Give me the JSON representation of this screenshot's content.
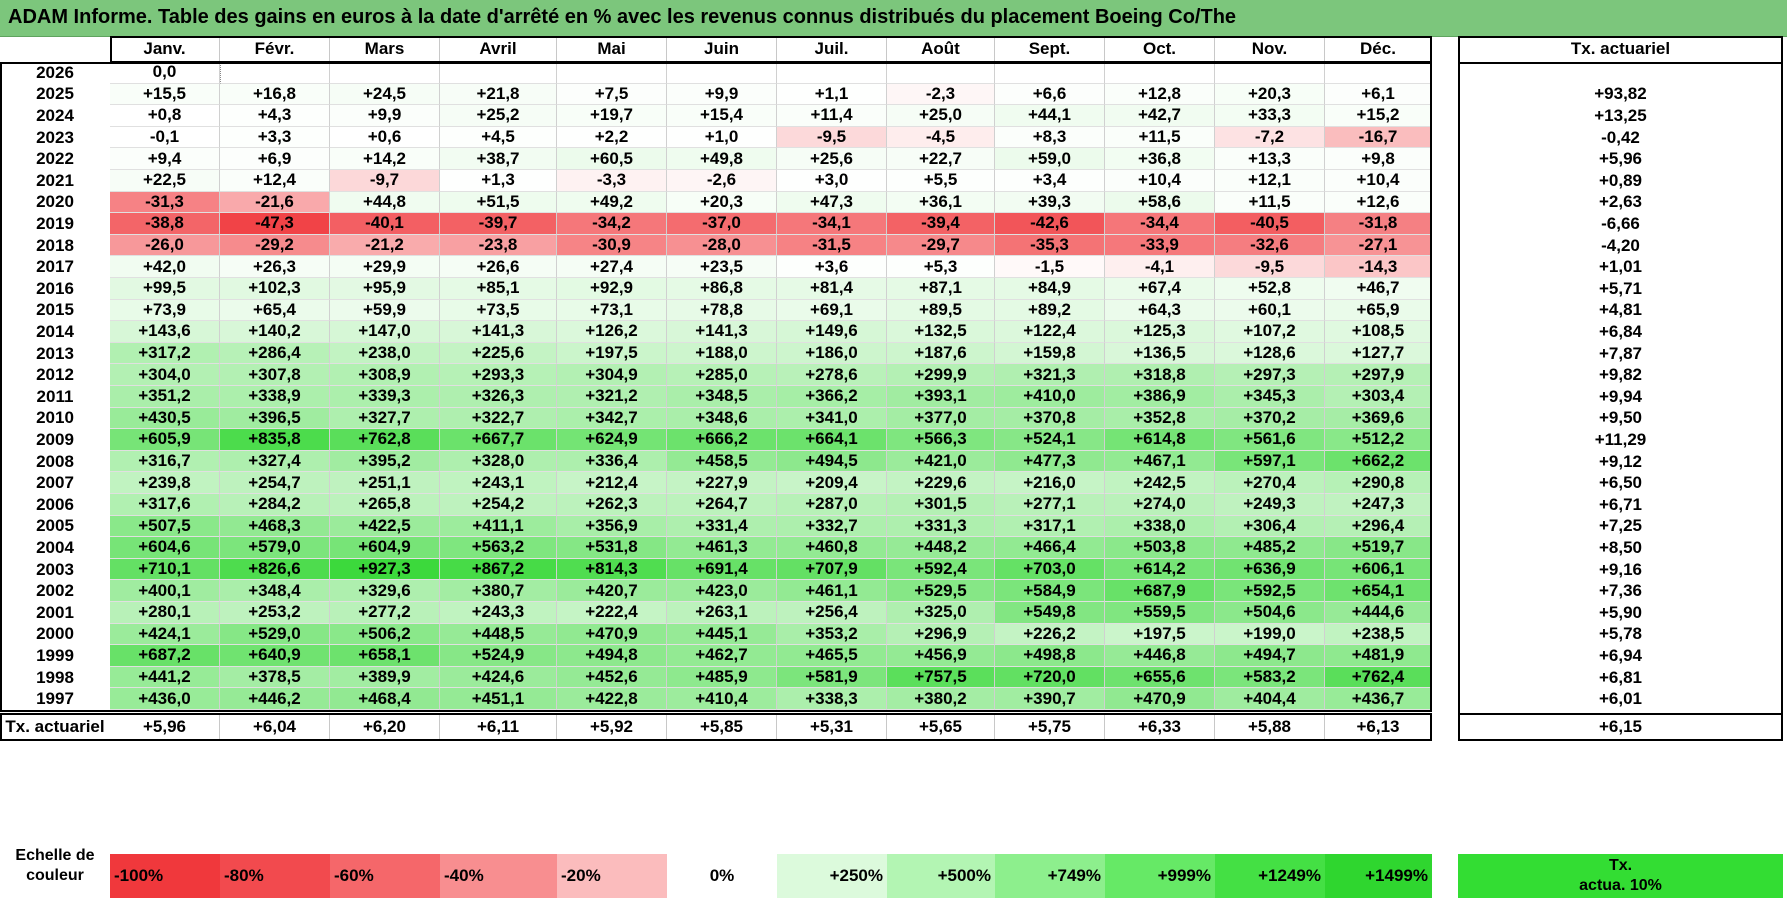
{
  "title": "ADAM Informe. Table des gains en euros à la date d'arrêté en % avec les revenus connus distribués du placement Boeing Co/The",
  "months": [
    "Janv.",
    "Févr.",
    "Mars",
    "Avril",
    "Mai",
    "Juin",
    "Juil.",
    "Août",
    "Sept.",
    "Oct.",
    "Nov.",
    "Déc."
  ],
  "rate_header": "Tx. actuariel",
  "rows": [
    {
      "year": "2026",
      "values": [
        "0,0",
        "",
        "",
        "",
        "",
        "",
        "",
        "",
        "",
        "",
        "",
        ""
      ],
      "rate": ""
    },
    {
      "year": "2025",
      "values": [
        "+15,5",
        "+16,8",
        "+24,5",
        "+21,8",
        "+7,5",
        "+9,9",
        "+1,1",
        "-2,3",
        "+6,6",
        "+12,8",
        "+20,3",
        "+6,1"
      ],
      "rate": "+93,82"
    },
    {
      "year": "2024",
      "values": [
        "+0,8",
        "+4,3",
        "+9,9",
        "+25,2",
        "+19,7",
        "+15,4",
        "+11,4",
        "+25,0",
        "+44,1",
        "+42,7",
        "+33,3",
        "+15,2"
      ],
      "rate": "+13,25"
    },
    {
      "year": "2023",
      "values": [
        "-0,1",
        "+3,3",
        "+0,6",
        "+4,5",
        "+2,2",
        "+1,0",
        "-9,5",
        "-4,5",
        "+8,3",
        "+11,5",
        "-7,2",
        "-16,7"
      ],
      "rate": "-0,42"
    },
    {
      "year": "2022",
      "values": [
        "+9,4",
        "+6,9",
        "+14,2",
        "+38,7",
        "+60,5",
        "+49,8",
        "+25,6",
        "+22,7",
        "+59,0",
        "+36,8",
        "+13,3",
        "+9,8"
      ],
      "rate": "+5,96"
    },
    {
      "year": "2021",
      "values": [
        "+22,5",
        "+12,4",
        "-9,7",
        "+1,3",
        "-3,3",
        "-2,6",
        "+3,0",
        "+5,5",
        "+3,4",
        "+10,4",
        "+12,1",
        "+10,4"
      ],
      "rate": "+0,89"
    },
    {
      "year": "2020",
      "values": [
        "-31,3",
        "-21,6",
        "+44,8",
        "+51,5",
        "+49,2",
        "+20,3",
        "+47,3",
        "+36,1",
        "+39,3",
        "+58,6",
        "+11,5",
        "+12,6"
      ],
      "rate": "+2,63"
    },
    {
      "year": "2019",
      "values": [
        "-38,8",
        "-47,3",
        "-40,1",
        "-39,7",
        "-34,2",
        "-37,0",
        "-34,1",
        "-39,4",
        "-42,6",
        "-34,4",
        "-40,5",
        "-31,8"
      ],
      "rate": "-6,66"
    },
    {
      "year": "2018",
      "values": [
        "-26,0",
        "-29,2",
        "-21,2",
        "-23,8",
        "-30,9",
        "-28,0",
        "-31,5",
        "-29,7",
        "-35,3",
        "-33,9",
        "-32,6",
        "-27,1"
      ],
      "rate": "-4,20"
    },
    {
      "year": "2017",
      "values": [
        "+42,0",
        "+26,3",
        "+29,9",
        "+26,6",
        "+27,4",
        "+23,5",
        "+3,6",
        "+5,3",
        "-1,5",
        "-4,1",
        "-9,5",
        "-14,3"
      ],
      "rate": "+1,01"
    },
    {
      "year": "2016",
      "values": [
        "+99,5",
        "+102,3",
        "+95,9",
        "+85,1",
        "+92,9",
        "+86,8",
        "+81,4",
        "+87,1",
        "+84,9",
        "+67,4",
        "+52,8",
        "+46,7"
      ],
      "rate": "+5,71"
    },
    {
      "year": "2015",
      "values": [
        "+73,9",
        "+65,4",
        "+59,9",
        "+73,5",
        "+73,1",
        "+78,8",
        "+69,1",
        "+89,5",
        "+89,2",
        "+64,3",
        "+60,1",
        "+65,9"
      ],
      "rate": "+4,81"
    },
    {
      "year": "2014",
      "values": [
        "+143,6",
        "+140,2",
        "+147,0",
        "+141,3",
        "+126,2",
        "+141,3",
        "+149,6",
        "+132,5",
        "+122,4",
        "+125,3",
        "+107,2",
        "+108,5"
      ],
      "rate": "+6,84"
    },
    {
      "year": "2013",
      "values": [
        "+317,2",
        "+286,4",
        "+238,0",
        "+225,6",
        "+197,5",
        "+188,0",
        "+186,0",
        "+187,6",
        "+159,8",
        "+136,5",
        "+128,6",
        "+127,7"
      ],
      "rate": "+7,87"
    },
    {
      "year": "2012",
      "values": [
        "+304,0",
        "+307,8",
        "+308,9",
        "+293,3",
        "+304,9",
        "+285,0",
        "+278,6",
        "+299,9",
        "+321,3",
        "+318,8",
        "+297,3",
        "+297,9"
      ],
      "rate": "+9,82"
    },
    {
      "year": "2011",
      "values": [
        "+351,2",
        "+338,9",
        "+339,3",
        "+326,3",
        "+321,2",
        "+348,5",
        "+366,2",
        "+393,1",
        "+410,0",
        "+386,9",
        "+345,3",
        "+303,4"
      ],
      "rate": "+9,94"
    },
    {
      "year": "2010",
      "values": [
        "+430,5",
        "+396,5",
        "+327,7",
        "+322,7",
        "+342,7",
        "+348,6",
        "+341,0",
        "+377,0",
        "+370,8",
        "+352,8",
        "+370,2",
        "+369,6"
      ],
      "rate": "+9,50"
    },
    {
      "year": "2009",
      "values": [
        "+605,9",
        "+835,8",
        "+762,8",
        "+667,7",
        "+624,9",
        "+666,2",
        "+664,1",
        "+566,3",
        "+524,1",
        "+614,8",
        "+561,6",
        "+512,2"
      ],
      "rate": "+11,29"
    },
    {
      "year": "2008",
      "values": [
        "+316,7",
        "+327,4",
        "+395,2",
        "+328,0",
        "+336,4",
        "+458,5",
        "+494,5",
        "+421,0",
        "+477,3",
        "+467,1",
        "+597,1",
        "+662,2"
      ],
      "rate": "+9,12"
    },
    {
      "year": "2007",
      "values": [
        "+239,8",
        "+254,7",
        "+251,1",
        "+243,1",
        "+212,4",
        "+227,9",
        "+209,4",
        "+229,6",
        "+216,0",
        "+242,5",
        "+270,4",
        "+290,8"
      ],
      "rate": "+6,50"
    },
    {
      "year": "2006",
      "values": [
        "+317,6",
        "+284,2",
        "+265,8",
        "+254,2",
        "+262,3",
        "+264,7",
        "+287,0",
        "+301,5",
        "+277,1",
        "+274,0",
        "+249,3",
        "+247,3"
      ],
      "rate": "+6,71"
    },
    {
      "year": "2005",
      "values": [
        "+507,5",
        "+468,3",
        "+422,5",
        "+411,1",
        "+356,9",
        "+331,4",
        "+332,7",
        "+331,3",
        "+317,1",
        "+338,0",
        "+306,4",
        "+296,4"
      ],
      "rate": "+7,25"
    },
    {
      "year": "2004",
      "values": [
        "+604,6",
        "+579,0",
        "+604,9",
        "+563,2",
        "+531,8",
        "+461,3",
        "+460,8",
        "+448,2",
        "+466,4",
        "+503,8",
        "+485,2",
        "+519,7"
      ],
      "rate": "+8,50"
    },
    {
      "year": "2003",
      "values": [
        "+710,1",
        "+826,6",
        "+927,3",
        "+867,2",
        "+814,3",
        "+691,4",
        "+707,9",
        "+592,4",
        "+703,0",
        "+614,2",
        "+636,9",
        "+606,1"
      ],
      "rate": "+9,16"
    },
    {
      "year": "2002",
      "values": [
        "+400,1",
        "+348,4",
        "+329,6",
        "+380,7",
        "+420,7",
        "+423,0",
        "+461,1",
        "+529,5",
        "+584,9",
        "+687,9",
        "+592,5",
        "+654,1"
      ],
      "rate": "+7,36"
    },
    {
      "year": "2001",
      "values": [
        "+280,1",
        "+253,2",
        "+277,2",
        "+243,3",
        "+222,4",
        "+263,1",
        "+256,4",
        "+325,0",
        "+549,8",
        "+559,5",
        "+504,6",
        "+444,6"
      ],
      "rate": "+5,90"
    },
    {
      "year": "2000",
      "values": [
        "+424,1",
        "+529,0",
        "+506,2",
        "+448,5",
        "+470,9",
        "+445,1",
        "+353,2",
        "+296,9",
        "+226,2",
        "+197,5",
        "+199,0",
        "+238,5"
      ],
      "rate": "+5,78"
    },
    {
      "year": "1999",
      "values": [
        "+687,2",
        "+640,9",
        "+658,1",
        "+524,9",
        "+494,8",
        "+462,7",
        "+465,5",
        "+456,9",
        "+498,8",
        "+446,8",
        "+494,7",
        "+481,9"
      ],
      "rate": "+6,94"
    },
    {
      "year": "1998",
      "values": [
        "+441,2",
        "+378,5",
        "+389,9",
        "+424,6",
        "+452,6",
        "+485,9",
        "+581,9",
        "+757,5",
        "+720,0",
        "+655,6",
        "+583,2",
        "+762,4"
      ],
      "rate": "+6,81"
    },
    {
      "year": "1997",
      "values": [
        "+436,0",
        "+446,2",
        "+468,4",
        "+451,1",
        "+422,8",
        "+410,4",
        "+338,3",
        "+380,2",
        "+390,7",
        "+470,9",
        "+404,4",
        "+436,7"
      ],
      "rate": "+6,01"
    }
  ],
  "footer": {
    "label": "Tx. actuariel",
    "values": [
      "+5,96",
      "+6,04",
      "+6,20",
      "+6,11",
      "+5,92",
      "+5,85",
      "+5,31",
      "+5,65",
      "+5,75",
      "+6,33",
      "+5,88",
      "+6,13"
    ],
    "rate": "+6,15"
  },
  "scale": {
    "label_line1": "Echelle de",
    "label_line2": "couleur",
    "items": [
      {
        "text": "-100%",
        "color": "#f0383c",
        "align": "left"
      },
      {
        "text": "-80%",
        "color": "#f24a4e",
        "align": "left"
      },
      {
        "text": "-60%",
        "color": "#f5676a",
        "align": "left"
      },
      {
        "text": "-40%",
        "color": "#f88e90",
        "align": "left"
      },
      {
        "text": "-20%",
        "color": "#fbbcbd",
        "align": "left"
      },
      {
        "text": "0%",
        "color": "#ffffff",
        "align": "center"
      },
      {
        "text": "+250%",
        "color": "#dcfadc",
        "align": "right"
      },
      {
        "text": "+500%",
        "color": "#b3f5b3",
        "align": "right"
      },
      {
        "text": "+749%",
        "color": "#8def8d",
        "align": "right"
      },
      {
        "text": "+999%",
        "color": "#66e966",
        "align": "right"
      },
      {
        "text": "+1249%",
        "color": "#44e044",
        "align": "right"
      },
      {
        "text": "+1499%",
        "color": "#2fd62f",
        "align": "right"
      }
    ],
    "rate_box_line1": "Tx.",
    "rate_box_line2": "actua. 10%",
    "rate_box_color": "#33dd33"
  },
  "colors": {
    "title_bg": "#7cc67c"
  }
}
